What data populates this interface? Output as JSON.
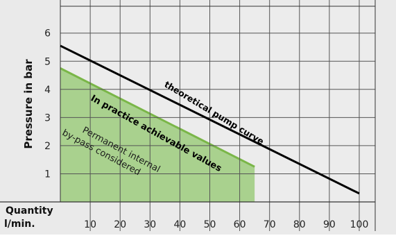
{
  "chart_data": {
    "type": "area",
    "ylabel": "Pressure in bar",
    "xlabel": "Quantity\nl/min.",
    "xlabel_lines": [
      "Quantity",
      "l/min."
    ],
    "x_ticks": [
      10,
      20,
      30,
      40,
      50,
      60,
      70,
      80,
      90,
      100
    ],
    "y_ticks": [
      1,
      2,
      3,
      4,
      5,
      6
    ],
    "xlim": [
      0,
      100
    ],
    "ylim": [
      0,
      7
    ],
    "grid": true,
    "series": [
      {
        "name": "theoretical pump curve",
        "kind": "line",
        "x": [
          0,
          100
        ],
        "y": [
          5.55,
          0.3
        ],
        "color": "#000000"
      },
      {
        "name": "In practice achievable values",
        "kind": "area",
        "x": [
          0,
          65
        ],
        "y": [
          4.75,
          1.25
        ],
        "color": "#7ab648",
        "fill": "#a9d18e"
      }
    ],
    "annotations": [
      {
        "id": "theoretical",
        "text": "theoretical pump curve"
      },
      {
        "id": "practice",
        "text": "In practice achievable values"
      },
      {
        "id": "bypass",
        "lines": [
          "Permanent internal",
          "by-pass considered"
        ]
      }
    ],
    "colors": {
      "background": "#ececec",
      "grid": "#555555",
      "axis_band": "#eaeaea"
    }
  }
}
